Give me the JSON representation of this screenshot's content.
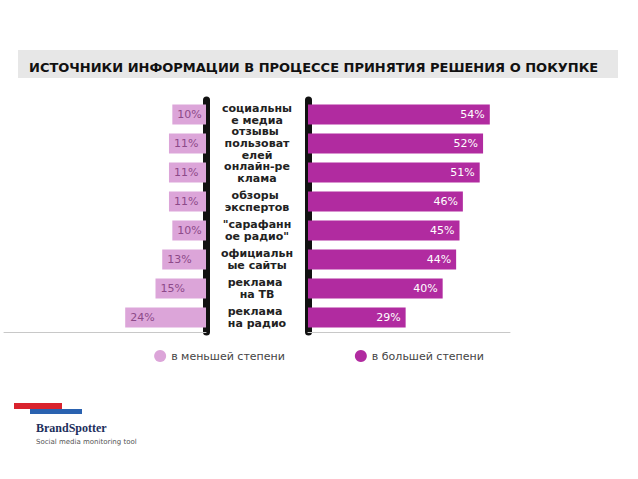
{
  "chart_data": {
    "type": "bar",
    "title": "ИСТОЧНИКИ ИНФОРМАЦИИ В ПРОЦЕССЕ ПРИНЯТИЯ РЕШЕНИЯ О ПОКУПКЕ",
    "orientation": "horizontal",
    "categories": [
      "социальные медиа",
      "отзывы пользователей",
      "онлайн-реклама",
      "обзоры экспертов",
      "\"сарафанное радио\"",
      "официальные сайты",
      "реклама на ТВ",
      "реклама на радио"
    ],
    "series": [
      {
        "name": "в меньшей степени",
        "color": "#dca5d9",
        "values": [
          10,
          11,
          11,
          11,
          10,
          13,
          15,
          24
        ],
        "value_labels": [
          "10%",
          "11%",
          "11%",
          "11%",
          "10%",
          "13%",
          "15%",
          "24%"
        ]
      },
      {
        "name": "в большей степени",
        "color": "#b12ba0",
        "values": [
          54,
          52,
          51,
          46,
          45,
          44,
          40,
          29
        ],
        "value_labels": [
          "54%",
          "52%",
          "51%",
          "46%",
          "45%",
          "44%",
          "40%",
          "29%"
        ]
      }
    ],
    "xlim": [
      0,
      60
    ],
    "data_labels": true,
    "tick_labels": false,
    "grid": false,
    "legend": "bottom",
    "annotations": [
      "BrandSpotter",
      "Social media monitoring tool"
    ]
  }
}
